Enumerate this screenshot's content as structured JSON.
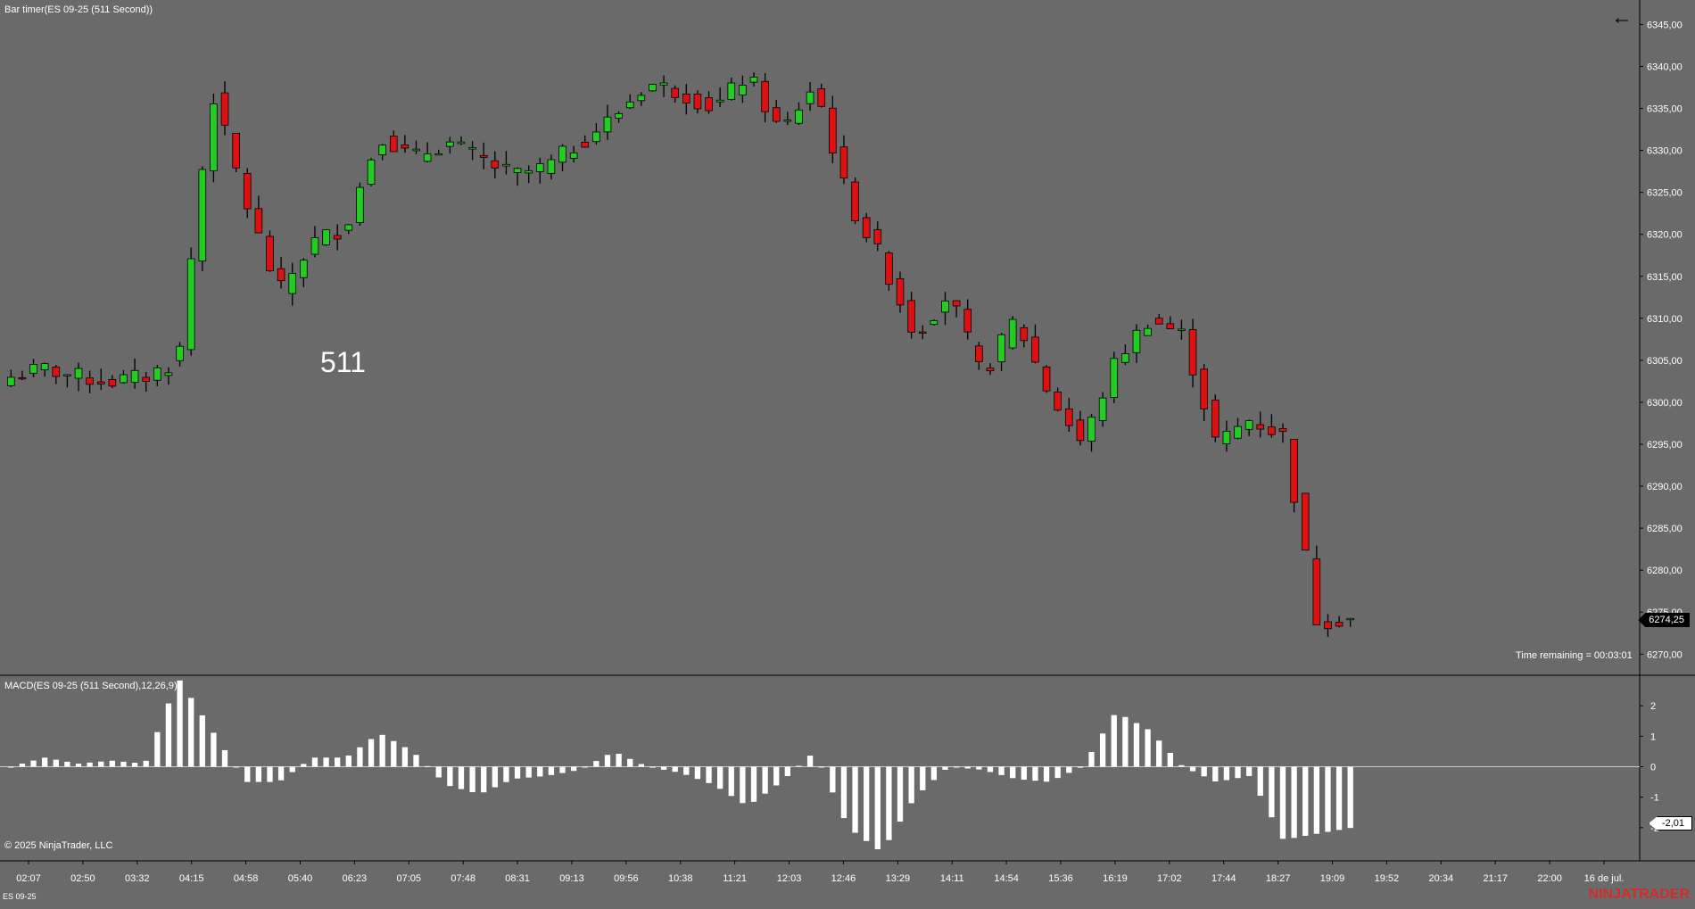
{
  "header": {
    "main_title": "Bar timer(ES 09-25 (511 Second))",
    "macd_title": "MACD(ES 09-25 (511 Second),12,26,9)",
    "copyright": "© 2025 NinjaTrader, LLC",
    "instrument_tab": "ES 09-25",
    "logo": "NINJATRADER",
    "back_icon": "arrow-left-icon"
  },
  "labels": {
    "bar_period": "511",
    "time_remaining": "Time remaining = 00:03:01",
    "last_price": "6274,25",
    "last_macd": "-2,01"
  },
  "colors": {
    "up": "#22cc22",
    "down": "#dd1111",
    "background": "#6a6a6a",
    "wick": "#000000",
    "histogram": "#ffffff"
  },
  "chart_data": [
    {
      "type": "candlestick",
      "title": "Bar timer(ES 09-25 (511 Second))",
      "y_ticks": [
        "6345,00",
        "6340,00",
        "6335,00",
        "6330,00",
        "6325,00",
        "6320,00",
        "6315,00",
        "6310,00",
        "6305,00",
        "6300,00",
        "6295,00",
        "6290,00",
        "6285,00",
        "6280,00",
        "6275,00",
        "6270,00"
      ],
      "ylim": [
        6269.5,
        6346
      ],
      "x_ticks": [
        "02:07",
        "02:50",
        "03:32",
        "04:15",
        "04:58",
        "05:40",
        "06:23",
        "07:05",
        "07:48",
        "08:31",
        "09:13",
        "09:56",
        "10:38",
        "11:21",
        "12:03",
        "12:46",
        "13:29",
        "14:11",
        "14:54",
        "15:36",
        "16:19",
        "17:02",
        "17:44",
        "18:27",
        "19:09",
        "19:52",
        "20:34",
        "21:17",
        "22:00",
        "16 de jul."
      ],
      "anchors": [
        6303.0,
        6304.0,
        6303.0,
        6302.5,
        6303.0,
        6305.0,
        6337.0,
        6324.0,
        6313.0,
        6319.0,
        6321.0,
        6332.0,
        6329.0,
        6331.0,
        6329.0,
        6327.0,
        6328.0,
        6331.0,
        6334.0,
        6338.0,
        6337.0,
        6335.0,
        6339.0,
        6332.0,
        6338.0,
        6324.0,
        6317.0,
        6308.0,
        6313.0,
        6303.0,
        6310.0,
        6301.0,
        6295.0,
        6305.0,
        6310.0,
        6308.0,
        6295.0,
        6298.0,
        6296.0,
        6274.0,
        6274.25
      ],
      "last": 6274.25,
      "bars": 120
    },
    {
      "type": "bar",
      "title": "MACD(ES 09-25 (511 Second),12,26,9)",
      "y_ticks": [
        "2",
        "1",
        "0",
        "-1",
        "-2"
      ],
      "ylim": [
        -3,
        3
      ],
      "anchors": [
        0,
        0.3,
        0.1,
        0.2,
        0.1,
        2.9,
        1.2,
        -0.5,
        -0.5,
        0.3,
        0.3,
        1.1,
        0.5,
        -0.6,
        -0.9,
        -0.4,
        -0.3,
        -0.1,
        0.5,
        0,
        -0.2,
        -0.6,
        -1.3,
        -0.5,
        0.5,
        -2.0,
        -2.8,
        -1.0,
        0,
        -0.1,
        -0.4,
        -0.5,
        0,
        1.8,
        1.2,
        0,
        -0.5,
        -0.3,
        -2.4,
        -2.2,
        -2.01
      ],
      "last": -2.01
    }
  ]
}
